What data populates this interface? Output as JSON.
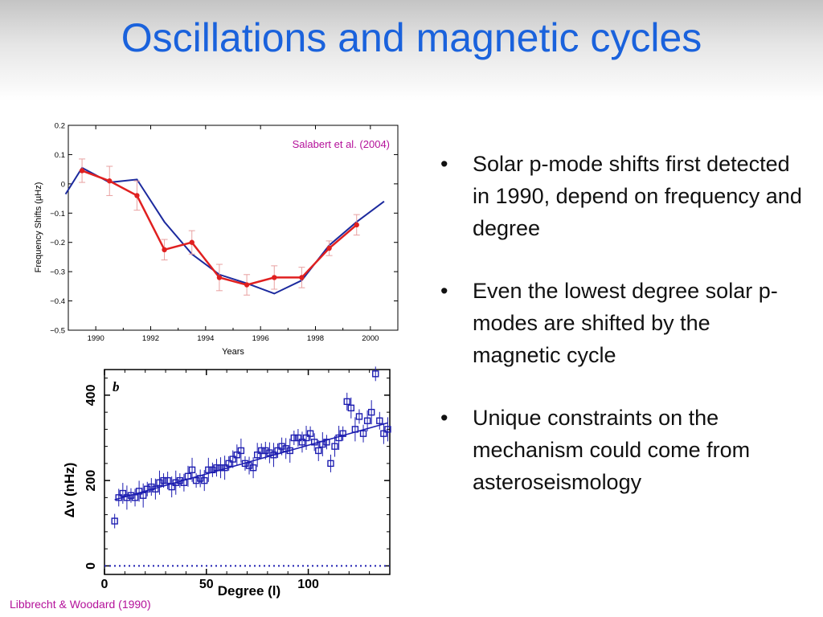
{
  "slide": {
    "title": "Oscillations and magnetic cycles",
    "title_color": "#1a62dc",
    "bullet_symbol": "•",
    "bullets": [
      "Solar p-mode shifts first detected in 1990, depend on frequency and degree",
      "Even the lowest degree solar p-modes are shifted by the magnetic cycle",
      "Unique constraints on the mechanism could come from asteroseismology"
    ]
  },
  "chart_data": [
    {
      "type": "line",
      "source": "Salabert et al. (2004)",
      "xlabel": "Years",
      "ylabel": "Frequency Shifts (µHz)",
      "xlim": [
        1989,
        2001
      ],
      "ylim": [
        -0.5,
        0.2
      ],
      "xticks": [
        "1990",
        "1992",
        "1994",
        "1996",
        "1998",
        "2000"
      ],
      "yticks": [
        "0.2",
        "0.1",
        "0",
        "−0.1",
        "−0.2",
        "−0.3",
        "−0.4",
        "−0.5"
      ],
      "grid": false,
      "series": [
        {
          "color": "#e02020",
          "x": [
            1989.5,
            1990.5,
            1991.5,
            1992.5,
            1993.5,
            1994.5,
            1995.5,
            1996.5,
            1997.5,
            1998.5,
            1999.5
          ],
          "y": [
            0.045,
            0.01,
            -0.04,
            -0.225,
            -0.2,
            -0.32,
            -0.345,
            -0.32,
            -0.32,
            -0.22,
            -0.14
          ],
          "err": [
            0.04,
            0.05,
            0.05,
            0.035,
            0.04,
            0.045,
            0.035,
            0.04,
            0.035,
            0.025,
            0.035
          ]
        },
        {
          "color": "#1c2a9e",
          "x": [
            1988.9,
            1989.5,
            1990.5,
            1991.5,
            1992.5,
            1993.5,
            1994.5,
            1995.5,
            1996.5,
            1997.5,
            1998.5,
            1999.5,
            2000.5
          ],
          "y": [
            -0.035,
            0.055,
            0.005,
            0.015,
            -0.13,
            -0.24,
            -0.31,
            -0.34,
            -0.375,
            -0.33,
            -0.21,
            -0.13,
            -0.06
          ]
        }
      ]
    },
    {
      "type": "scatter",
      "panel_label": "b",
      "source": "Libbrecht & Woodard (1990)",
      "xlabel": "Degree (l)",
      "ylabel": "Δν (nHz)",
      "xlim": [
        0,
        140
      ],
      "ylim": [
        -20,
        460
      ],
      "xticks": [
        "0",
        "50",
        "100"
      ],
      "yticks": [
        "0",
        "200",
        "400"
      ],
      "grid": false,
      "color": "#1c1cb0",
      "points": {
        "x": [
          5,
          7,
          9,
          11,
          13,
          15,
          17,
          19,
          21,
          23,
          25,
          27,
          29,
          31,
          33,
          35,
          37,
          39,
          41,
          43,
          45,
          47,
          49,
          51,
          53,
          55,
          57,
          59,
          61,
          63,
          65,
          67,
          69,
          71,
          73,
          75,
          77,
          79,
          81,
          83,
          85,
          87,
          89,
          91,
          93,
          95,
          97,
          99,
          101,
          103,
          105,
          107,
          109,
          111,
          113,
          115,
          117,
          119,
          121,
          123,
          125,
          127,
          129,
          131,
          133,
          135,
          137,
          139
        ],
        "y": [
          105,
          160,
          170,
          160,
          165,
          160,
          175,
          165,
          180,
          185,
          180,
          195,
          200,
          200,
          185,
          195,
          200,
          195,
          210,
          225,
          200,
          205,
          200,
          225,
          225,
          230,
          230,
          230,
          240,
          250,
          260,
          270,
          240,
          235,
          230,
          260,
          270,
          270,
          265,
          260,
          270,
          280,
          275,
          270,
          300,
          300,
          290,
          300,
          310,
          290,
          270,
          285,
          290,
          240,
          280,
          300,
          310,
          385,
          370,
          320,
          350,
          310,
          340,
          360,
          450,
          340,
          310,
          320
        ]
      },
      "fit_line": {
        "x": [
          5,
          139
        ],
        "y": [
          155,
          335
        ]
      },
      "zero_line": {
        "x": [
          0,
          140
        ],
        "y": [
          0,
          0
        ]
      }
    }
  ]
}
